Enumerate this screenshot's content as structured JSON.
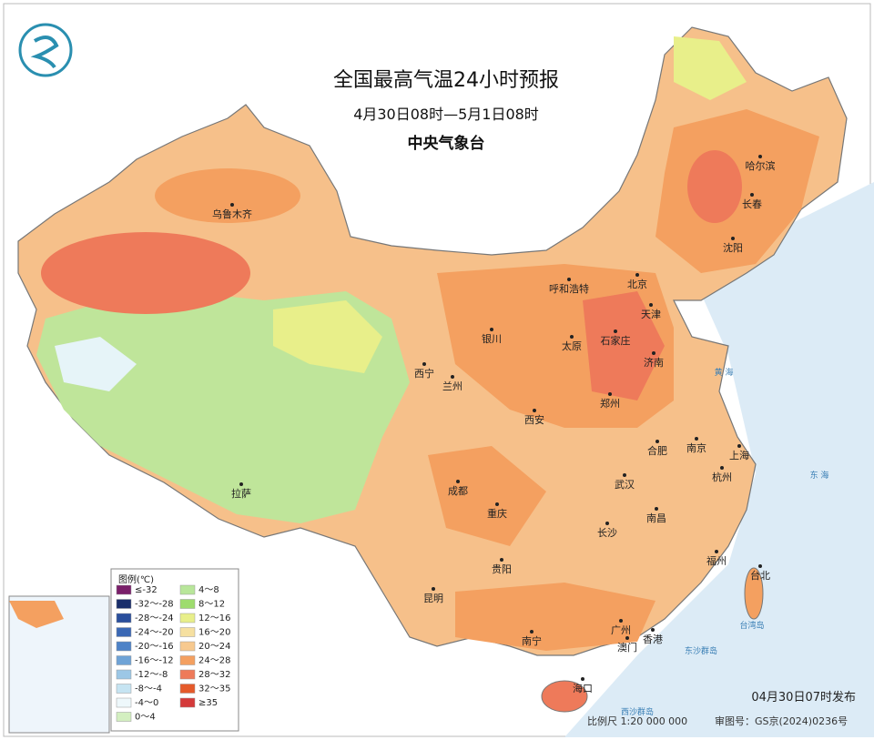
{
  "header": {
    "title": "全国最高气温24小时预报",
    "subtitle": "4月30日08时—5月1日08时",
    "agency": "中央气象台"
  },
  "cities": [
    {
      "name": "乌鲁木齐"
    },
    {
      "name": "哈尔滨"
    },
    {
      "name": "长春"
    },
    {
      "name": "沈阳"
    },
    {
      "name": "北京"
    },
    {
      "name": "呼和浩特"
    },
    {
      "name": "天津"
    },
    {
      "name": "银川"
    },
    {
      "name": "太原"
    },
    {
      "name": "石家庄"
    },
    {
      "name": "济南"
    },
    {
      "name": "西宁"
    },
    {
      "name": "兰州"
    },
    {
      "name": "郑州"
    },
    {
      "name": "西安"
    },
    {
      "name": "合肥"
    },
    {
      "name": "南京"
    },
    {
      "name": "上海"
    },
    {
      "name": "成都"
    },
    {
      "name": "武汉"
    },
    {
      "name": "杭州"
    },
    {
      "name": "拉萨"
    },
    {
      "name": "重庆"
    },
    {
      "name": "长沙"
    },
    {
      "name": "南昌"
    },
    {
      "name": "贵阳"
    },
    {
      "name": "福州"
    },
    {
      "name": "台北"
    },
    {
      "name": "昆明"
    },
    {
      "name": "南宁"
    },
    {
      "name": "广州"
    },
    {
      "name": "香港"
    },
    {
      "name": "澳门"
    },
    {
      "name": "海口"
    }
  ],
  "sea_labels": [
    "黄 海",
    "东 海",
    "台湾岛",
    "东沙群岛",
    "西沙群岛"
  ],
  "legend": {
    "title": "图例(℃)",
    "items": [
      {
        "label": "≤-32",
        "color": "#7a1f6a"
      },
      {
        "label": "-32～-28",
        "color": "#1a2f6b"
      },
      {
        "label": "-28～-24",
        "color": "#2a4f9c"
      },
      {
        "label": "-24～-20",
        "color": "#3a68b5"
      },
      {
        "label": "-20～-16",
        "color": "#4d82c7"
      },
      {
        "label": "-16～-12",
        "color": "#6fa3d6"
      },
      {
        "label": "-12～-8",
        "color": "#9cc7e6"
      },
      {
        "label": "-8～-4",
        "color": "#c6e4f2"
      },
      {
        "label": "-4～0",
        "color": "#eef8fb"
      },
      {
        "label": "0～4",
        "color": "#d3efc0"
      },
      {
        "label": "4～8",
        "color": "#b8e69a"
      },
      {
        "label": "8～12",
        "color": "#9edc6e"
      },
      {
        "label": "12～16",
        "color": "#e8ef8a"
      },
      {
        "label": "16～20",
        "color": "#f6e0a0"
      },
      {
        "label": "20～24",
        "color": "#f7c98f"
      },
      {
        "label": "24～28",
        "color": "#f4a060"
      },
      {
        "label": "28～32",
        "color": "#ee7a5a"
      },
      {
        "label": "32～35",
        "color": "#e55a2a"
      },
      {
        "label": "≥35",
        "color": "#d43a3a"
      }
    ]
  },
  "footer": {
    "issued": "04月30日07时发布",
    "scale": "比例尺 1:20 000 000",
    "approval": "审图号：GS京(2024)0236号"
  }
}
